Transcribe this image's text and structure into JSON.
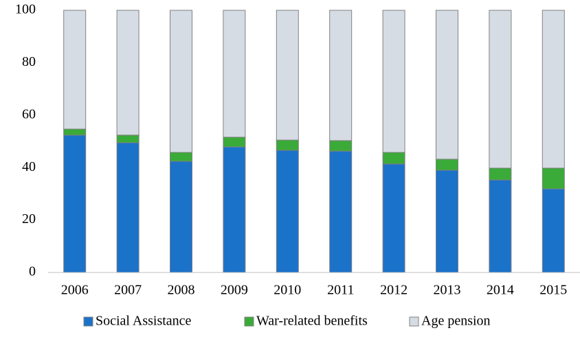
{
  "chart_data": {
    "type": "bar",
    "stacked": true,
    "categories": [
      "2006",
      "2007",
      "2008",
      "2009",
      "2010",
      "2011",
      "2012",
      "2013",
      "2014",
      "2015"
    ],
    "series": [
      {
        "name": "Social Assistance",
        "color": "#1b72c9",
        "values": [
          52.4,
          49.5,
          42.4,
          47.9,
          46.6,
          46.3,
          41.4,
          39.0,
          35.3,
          31.9
        ]
      },
      {
        "name": "War-related benefits",
        "color": "#3aab38",
        "values": [
          2.3,
          2.9,
          3.4,
          3.7,
          3.9,
          4.0,
          4.4,
          4.2,
          4.5,
          7.9
        ]
      },
      {
        "name": "Age pension",
        "color": "#d6dce4",
        "values": [
          45.3,
          47.6,
          54.2,
          48.4,
          49.5,
          49.7,
          54.2,
          56.8,
          60.2,
          60.2
        ]
      }
    ],
    "ylim": [
      0,
      100
    ],
    "yticks": [
      0,
      20,
      40,
      60,
      80,
      100
    ],
    "grid": false,
    "legend": "bottom"
  }
}
